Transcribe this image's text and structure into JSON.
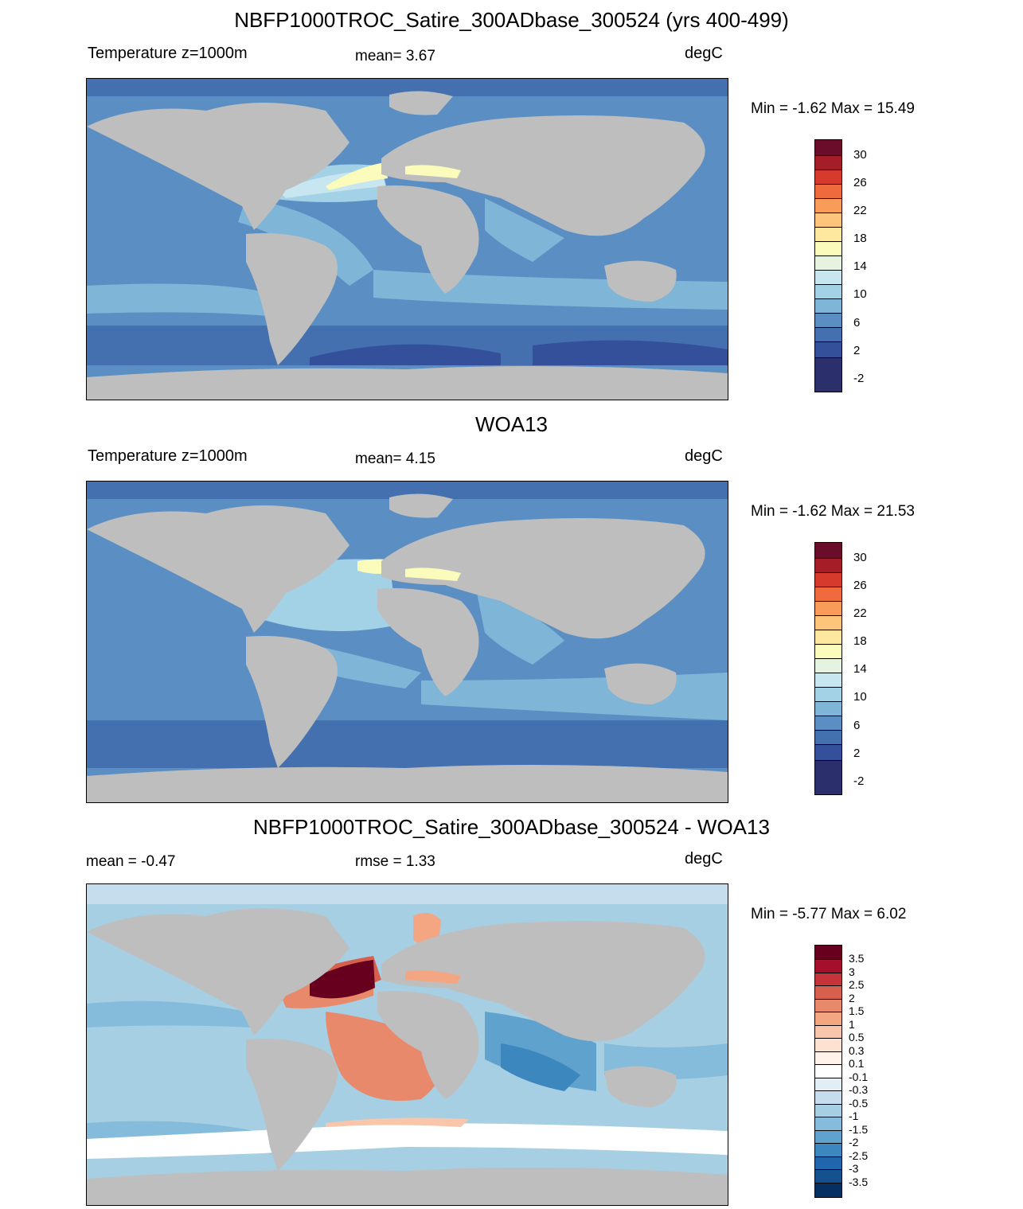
{
  "panels": [
    {
      "title": "NBFP1000TROC_Satire_300ADbase_300524 (yrs 400-499)",
      "left_label": "Temperature z=1000m",
      "center_label": "mean=   3.67",
      "units": "degC",
      "minmax": "Min =  -1.62 Max =  15.49",
      "colorbar_labels": [
        "30",
        "26",
        "22",
        "18",
        "14",
        "10",
        "6",
        "2",
        "-2"
      ]
    },
    {
      "title": "WOA13",
      "left_label": "Temperature z=1000m",
      "center_label": "mean=   4.15",
      "units": "degC",
      "minmax": "Min =  -1.62 Max =  21.53",
      "colorbar_labels": [
        "30",
        "26",
        "22",
        "18",
        "14",
        "10",
        "6",
        "2",
        "-2"
      ]
    },
    {
      "title": "NBFP1000TROC_Satire_300ADbase_300524 - WOA13",
      "left_label": "mean =  -0.47",
      "center_label": "rmse =   1.33",
      "units": "degC",
      "minmax": "Min =  -5.77 Max =   6.02",
      "colorbar_labels": [
        "3.5",
        "3",
        "2.5",
        "2",
        "1.5",
        "1",
        "0.5",
        "0.3",
        "0.1",
        "-0.1",
        "-0.3",
        "-0.5",
        "-1",
        "-1.5",
        "-2",
        "-2.5",
        "-3",
        "-3.5"
      ]
    }
  ],
  "colors": {
    "land": "#bebebe",
    "temp_scale": [
      "#6a0d2a",
      "#a51e27",
      "#d63a2c",
      "#ef6b3e",
      "#f99c59",
      "#fdc57c",
      "#fee79e",
      "#fbfbbc",
      "#e6f3e0",
      "#c8e6ef",
      "#a3d2e7",
      "#7fb6d8",
      "#5b8fc4",
      "#4470b0",
      "#34509a",
      "#2b2f6b"
    ],
    "diff_scale": [
      "#67001f",
      "#a50f2b",
      "#c6343a",
      "#d6604d",
      "#e8896c",
      "#f4a582",
      "#f9c6ac",
      "#fde2d2",
      "#ffffff",
      "#e2eef6",
      "#c5dded",
      "#a6cfe4",
      "#85bcdb",
      "#5fa2cd",
      "#3c87be",
      "#2166ac",
      "#15508f",
      "#053061"
    ]
  }
}
